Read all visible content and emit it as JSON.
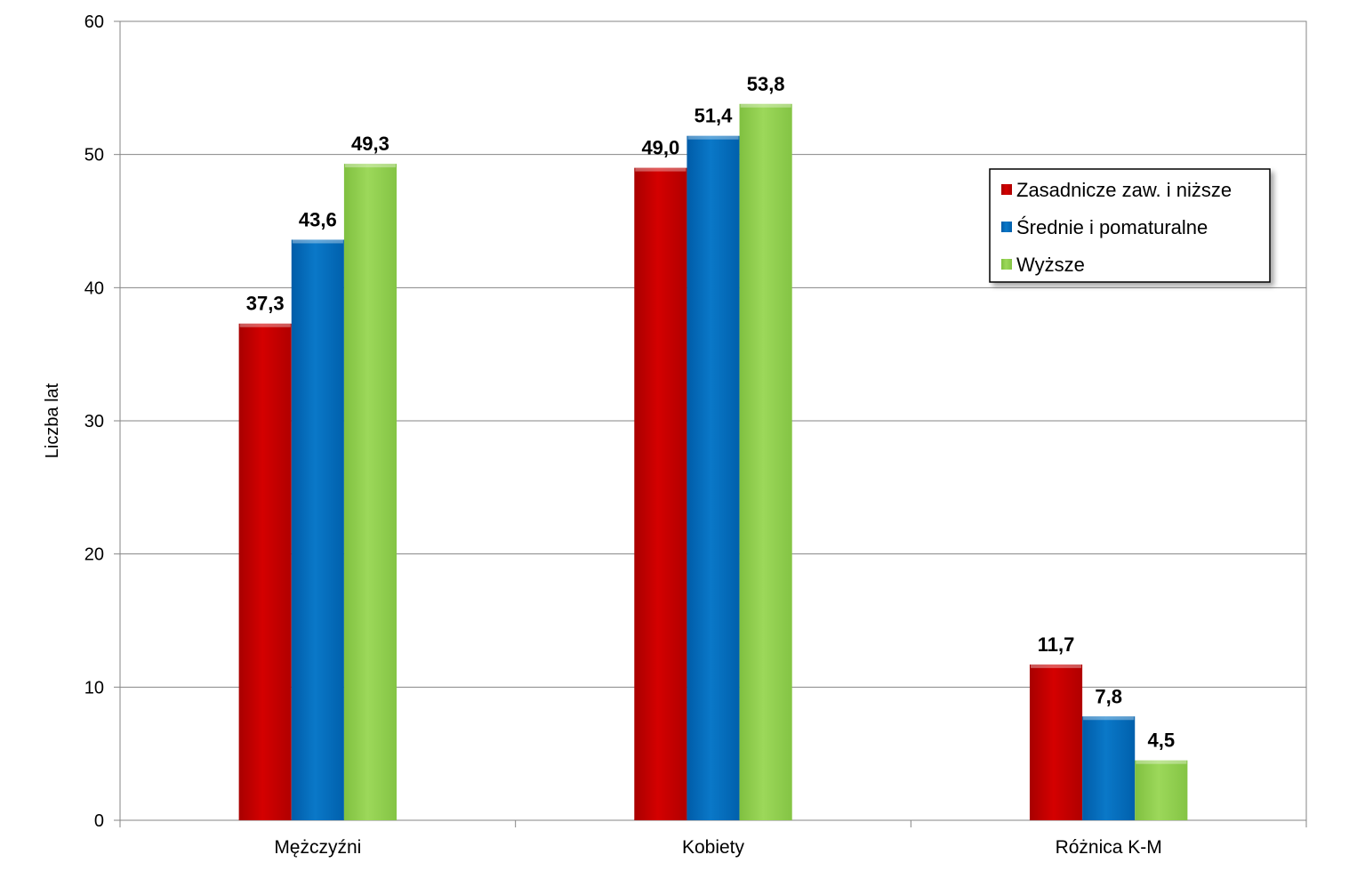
{
  "chart_data": {
    "type": "bar",
    "categories": [
      "Mężczyźni",
      "Kobiety",
      "Różnica K-M"
    ],
    "series": [
      {
        "name": "Zasadnicze zaw. i niższe",
        "values": [
          37.3,
          49.0,
          11.7
        ],
        "labels": [
          "37,3",
          "49,0",
          "11,7"
        ],
        "color": "#cc0000"
      },
      {
        "name": "Średnie i pomaturalne",
        "values": [
          43.6,
          51.4,
          7.8
        ],
        "labels": [
          "43,6",
          "51,4",
          "7,8"
        ],
        "color": "#0070c0"
      },
      {
        "name": "Wyższe",
        "values": [
          49.3,
          53.8,
          4.5
        ],
        "labels": [
          "49,3",
          "53,8",
          "4,5"
        ],
        "color": "#92d050"
      }
    ],
    "ylabel": "Liczba lat",
    "xlabel": "",
    "title": "",
    "ylim": [
      0,
      60
    ],
    "yticks": [
      0,
      10,
      20,
      30,
      40,
      50,
      60
    ],
    "grid": true,
    "legend_position": "right-top"
  }
}
